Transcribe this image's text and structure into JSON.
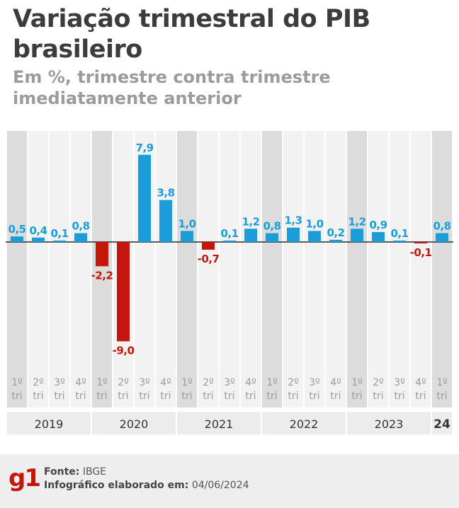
{
  "header": {
    "title": "Variação trimestral do PIB brasileiro",
    "subtitle": "Em %, trimestre contra trimestre imediatamente anterior"
  },
  "chart_data": {
    "type": "bar",
    "title": "Variação trimestral do PIB brasileiro",
    "subtitle": "Em %, trimestre contra trimestre imediatamente anterior",
    "categories": [
      "1º tri",
      "2º tri",
      "3º tri",
      "4º tri",
      "1º tri",
      "2º tri",
      "3º tri",
      "4º tri",
      "1º tri",
      "2º tri",
      "3º tri",
      "4º tri",
      "1º tri",
      "2º tri",
      "3º tri",
      "4º tri",
      "1º tri",
      "2º tri",
      "3º tri",
      "4º tri",
      "1º tri"
    ],
    "quarter_labels": [
      "1º",
      "2º",
      "3º",
      "4º",
      "1º",
      "2º",
      "3º",
      "4º",
      "1º",
      "2º",
      "3º",
      "4º",
      "1º",
      "2º",
      "3º",
      "4º",
      "1º",
      "2º",
      "3º",
      "4º",
      "1º"
    ],
    "quarter_suffix": "tri",
    "values": [
      0.5,
      0.4,
      0.1,
      0.8,
      -2.2,
      -9.0,
      7.9,
      3.8,
      1.0,
      -0.7,
      0.1,
      1.2,
      0.8,
      1.3,
      1.0,
      0.2,
      1.2,
      0.9,
      0.1,
      -0.1,
      0.8
    ],
    "value_labels": [
      "0,5",
      "0,4",
      "0,1",
      "0,8",
      "-2,2",
      "-9,0",
      "7,9",
      "3,8",
      "1,0",
      "-0,7",
      "0,1",
      "1,2",
      "0,8",
      "1,3",
      "1,0",
      "0,2",
      "1,2",
      "0,9",
      "0,1",
      "-0,1",
      "0,8"
    ],
    "years": [
      {
        "label": "2019",
        "quarters": 4
      },
      {
        "label": "2020",
        "quarters": 4
      },
      {
        "label": "2021",
        "quarters": 4
      },
      {
        "label": "2022",
        "quarters": 4
      },
      {
        "label": "2023",
        "quarters": 4
      },
      {
        "label": "24",
        "quarters": 1
      }
    ],
    "ylim": [
      -9.0,
      7.9
    ],
    "grid": false,
    "xlabel": "",
    "ylabel": "",
    "colors": {
      "positive": "#1b9dd9",
      "negative": "#c4170c",
      "column_shade": "#dcdcdc",
      "column_light": "#f2f2f2",
      "year_bar": "#ececec",
      "axis": "#000000",
      "tick_text": "#9b9b9b"
    }
  },
  "footer": {
    "logo": "g1",
    "source_label": "Fonte:",
    "source_value": "IBGE",
    "made_label": "Infográfico elaborado em:",
    "made_value": "04/06/2024"
  }
}
